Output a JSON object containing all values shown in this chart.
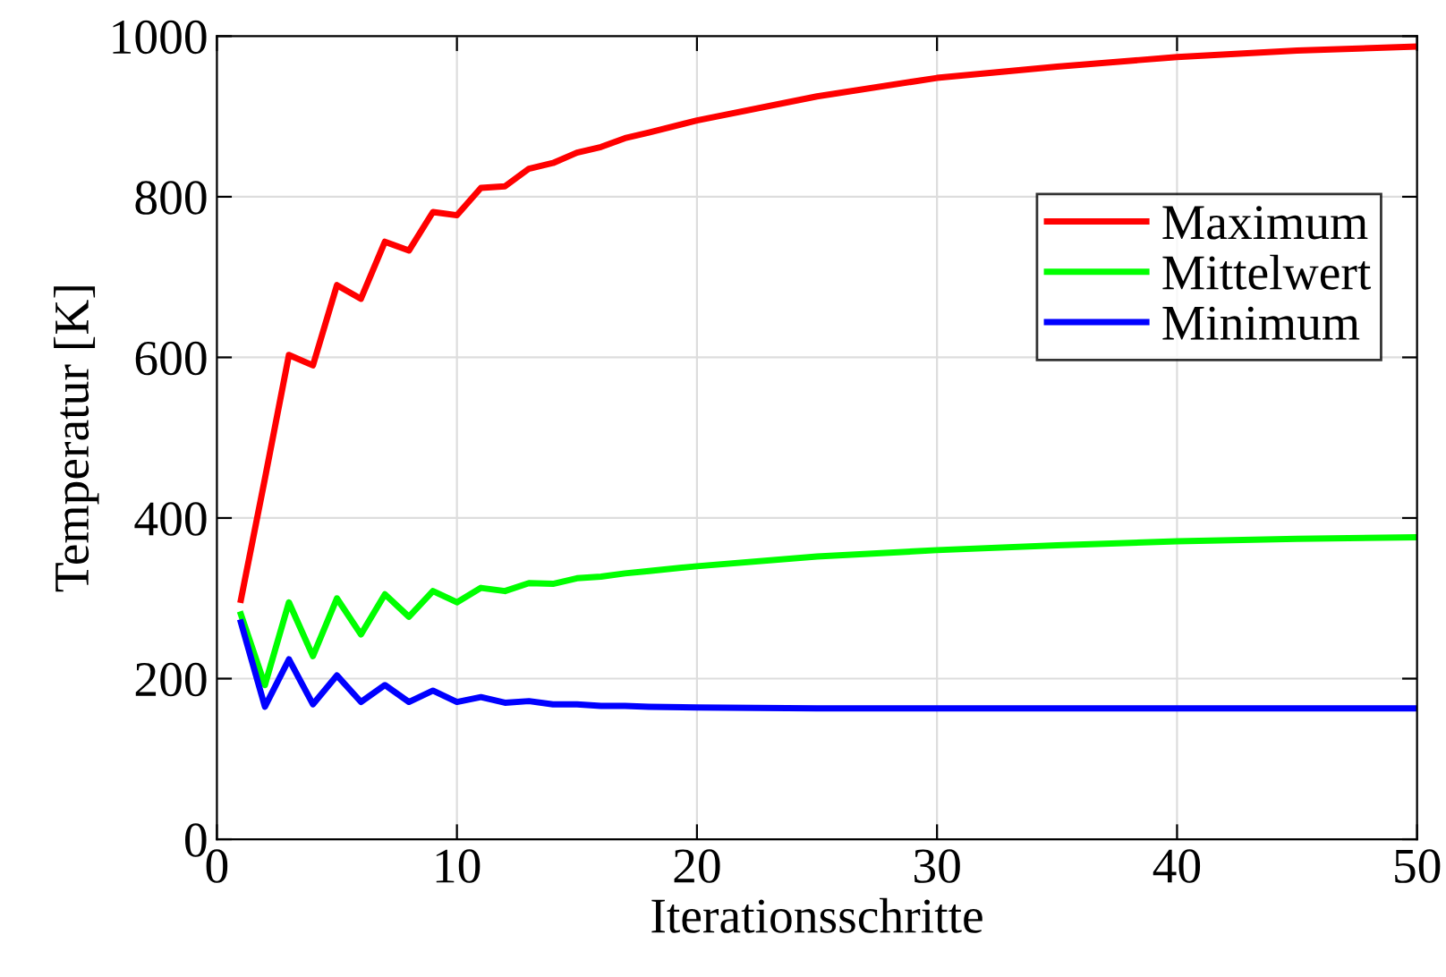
{
  "chart_data": {
    "type": "line",
    "xlabel": "Iterationsschritte",
    "ylabel": "Temperatur [K]",
    "x": [
      1,
      2,
      3,
      4,
      5,
      6,
      7,
      8,
      9,
      10,
      11,
      12,
      13,
      14,
      15,
      16,
      17,
      18,
      20,
      25,
      30,
      35,
      40,
      45,
      50
    ],
    "series": [
      {
        "name": "Maximum",
        "color": "#ff0000",
        "values": [
          298,
          449,
          603,
          590,
          690,
          673,
          744,
          733,
          781,
          777,
          811,
          813,
          835,
          842,
          855,
          862,
          873,
          880,
          895,
          925,
          948,
          962,
          974,
          982,
          987
        ]
      },
      {
        "name": "Mittelwert",
        "color": "#00ff00",
        "values": [
          280,
          192,
          295,
          228,
          300,
          255,
          305,
          277,
          309,
          295,
          313,
          309,
          319,
          318,
          325,
          327,
          331,
          334,
          340,
          352,
          360,
          366,
          371,
          374,
          376
        ]
      },
      {
        "name": "Minimum",
        "color": "#0000ff",
        "values": [
          270,
          165,
          224,
          168,
          204,
          171,
          192,
          171,
          185,
          171,
          177,
          170,
          172,
          168,
          168,
          166,
          166,
          165,
          164,
          163,
          163,
          163,
          163,
          163,
          163
        ]
      }
    ],
    "xlim": [
      0,
      50
    ],
    "ylim": [
      0,
      1000
    ],
    "xticks": [
      0,
      10,
      20,
      30,
      40,
      50
    ],
    "yticks": [
      0,
      200,
      400,
      600,
      800,
      1000
    ],
    "grid": true,
    "legend": "center right",
    "marker": "none",
    "line_style": "solid"
  }
}
